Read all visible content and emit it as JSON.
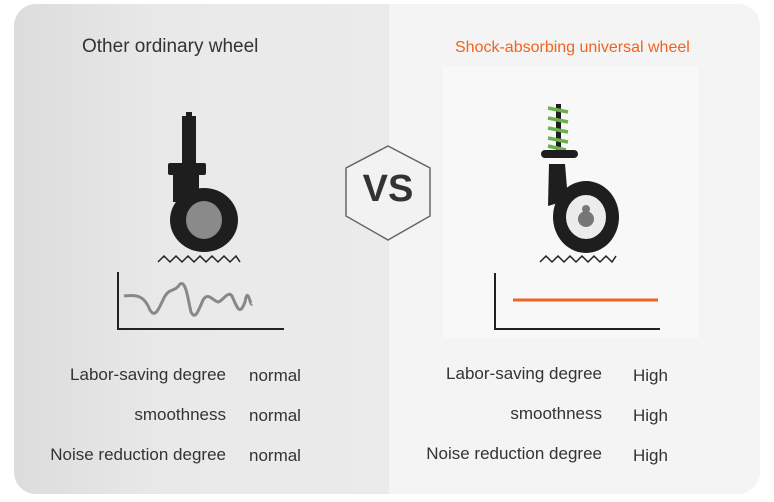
{
  "left": {
    "title": "Other ordinary wheel",
    "rows": [
      {
        "label": "Labor-saving degree",
        "value": "normal"
      },
      {
        "label": "smoothness",
        "value": "normal"
      },
      {
        "label": "Noise reduction degree",
        "value": "normal"
      }
    ]
  },
  "vs": "VS",
  "right": {
    "title": "Shock-absorbing universal wheel",
    "title_color": "#f0641e",
    "rows": [
      {
        "label": "Labor-saving degree",
        "value": "High"
      },
      {
        "label": "smoothness",
        "value": "High"
      },
      {
        "label": "Noise reduction degree",
        "value": "High"
      }
    ]
  }
}
